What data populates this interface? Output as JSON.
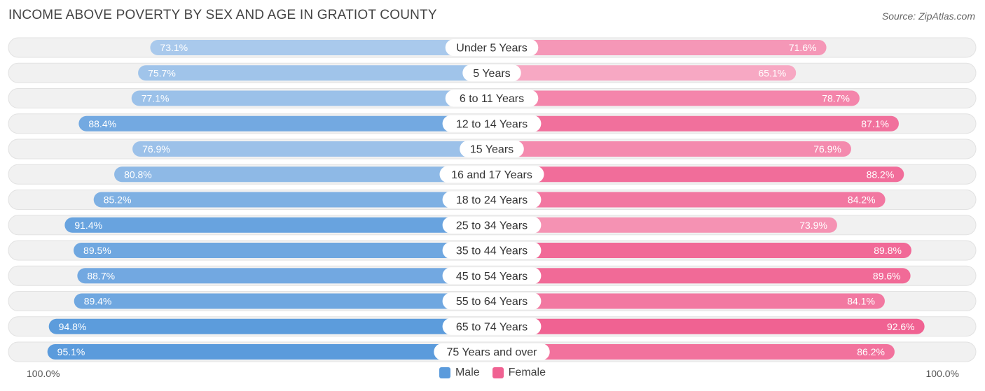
{
  "header": {
    "title": "INCOME ABOVE POVERTY BY SEX AND AGE IN GRATIOT COUNTY",
    "source": "Source: ZipAtlas.com"
  },
  "axis": {
    "left_label": "100.0%",
    "right_label": "100.0%"
  },
  "legend": {
    "male_label": "Male",
    "female_label": "Female"
  },
  "colors": {
    "male": "#5b9bdc",
    "male_light": "#a9c9ec",
    "female": "#f06292",
    "female_light": "#f7a8c3",
    "track": "#f1f1f1"
  },
  "chart_data": {
    "type": "bar",
    "orientation": "horizontal-diverging",
    "title": "INCOME ABOVE POVERTY BY SEX AND AGE IN GRATIOT COUNTY",
    "xlim": [
      0,
      100
    ],
    "categories": [
      "Under 5 Years",
      "5 Years",
      "6 to 11 Years",
      "12 to 14 Years",
      "15 Years",
      "16 and 17 Years",
      "18 to 24 Years",
      "25 to 34 Years",
      "35 to 44 Years",
      "45 to 54 Years",
      "55 to 64 Years",
      "65 to 74 Years",
      "75 Years and over"
    ],
    "series": [
      {
        "name": "Male",
        "values": [
          73.1,
          75.7,
          77.1,
          88.4,
          76.9,
          80.8,
          85.2,
          91.4,
          89.5,
          88.7,
          89.4,
          94.8,
          95.1
        ],
        "labels": [
          "73.1%",
          "75.7%",
          "77.1%",
          "88.4%",
          "76.9%",
          "80.8%",
          "85.2%",
          "91.4%",
          "89.5%",
          "88.7%",
          "89.4%",
          "94.8%",
          "95.1%"
        ]
      },
      {
        "name": "Female",
        "values": [
          71.6,
          65.1,
          78.7,
          87.1,
          76.9,
          88.2,
          84.2,
          73.9,
          89.8,
          89.6,
          84.1,
          92.6,
          86.2
        ],
        "labels": [
          "71.6%",
          "65.1%",
          "78.7%",
          "87.1%",
          "76.9%",
          "88.2%",
          "84.2%",
          "73.9%",
          "89.8%",
          "89.6%",
          "84.1%",
          "92.6%",
          "86.2%"
        ]
      }
    ]
  }
}
